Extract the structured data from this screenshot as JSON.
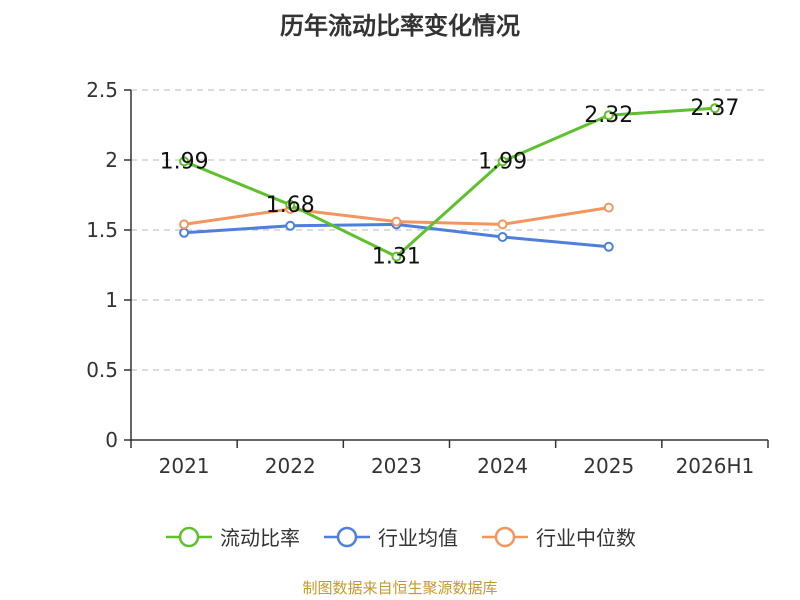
{
  "title": "历年流动比率变化情况",
  "footer": "制图数据来自恒生聚源数据库",
  "chart_data": {
    "type": "line",
    "title": "历年流动比率变化情况",
    "categories": [
      "2021",
      "2022",
      "2023",
      "2024",
      "2025",
      "2026H1"
    ],
    "ylim": [
      0,
      2.5
    ],
    "yticks": [
      "0",
      "0.5",
      "1",
      "1.5",
      "2",
      "2.5"
    ],
    "grid": true,
    "legend": "bottom",
    "series": [
      {
        "name": "流动比率",
        "color": "#5ec02d",
        "values": [
          1.99,
          1.68,
          1.31,
          1.99,
          2.32,
          2.37
        ],
        "labels": [
          "1.99",
          "1.68",
          "1.31",
          "1.99",
          "2.32",
          "2.37"
        ]
      },
      {
        "name": "行业均值",
        "color": "#4e7fdc",
        "values": [
          1.48,
          1.53,
          1.54,
          1.45,
          1.38,
          null
        ]
      },
      {
        "name": "行业中位数",
        "color": "#f2955e",
        "values": [
          1.54,
          1.65,
          1.56,
          1.54,
          1.66,
          null
        ]
      }
    ]
  }
}
